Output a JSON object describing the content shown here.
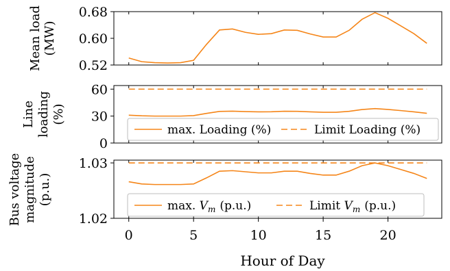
{
  "chart_data": [
    {
      "type": "line",
      "ylabel_lines": [
        "Mean load",
        "(MW)"
      ],
      "yticks": [
        0.52,
        0.6,
        0.68
      ],
      "ytick_labels": [
        "0.52",
        "0.60",
        "0.68"
      ],
      "ylim": [
        0.52,
        0.68
      ],
      "xlim": [
        -1.15,
        24.15
      ],
      "series": [
        {
          "role": "mean-load",
          "color": "#f58518",
          "x": [
            0,
            1,
            2,
            3,
            4,
            5,
            6,
            7,
            8,
            9,
            10,
            11,
            12,
            13,
            14,
            15,
            16,
            17,
            18,
            19,
            20,
            21,
            22,
            23
          ],
          "values": [
            0.541,
            0.53,
            0.527,
            0.526,
            0.527,
            0.534,
            0.582,
            0.625,
            0.628,
            0.618,
            0.612,
            0.614,
            0.625,
            0.624,
            0.613,
            0.604,
            0.604,
            0.624,
            0.657,
            0.677,
            0.66,
            0.637,
            0.614,
            0.585
          ]
        }
      ]
    },
    {
      "type": "line",
      "ylabel_lines": [
        "Line",
        "loading",
        "(%)"
      ],
      "yticks": [
        0,
        30,
        60
      ],
      "ytick_labels": [
        "0",
        "30",
        "60"
      ],
      "ylim": [
        0,
        64
      ],
      "xlim": [
        -1.15,
        24.15
      ],
      "legend_position": "lower-center",
      "series": [
        {
          "name": "max. Loading (%)",
          "style": "solid",
          "color": "#f58518",
          "x": [
            0,
            1,
            2,
            3,
            4,
            5,
            6,
            7,
            8,
            9,
            10,
            11,
            12,
            13,
            14,
            15,
            16,
            17,
            18,
            19,
            20,
            21,
            22,
            23
          ],
          "values": [
            31.0,
            30.3,
            30.0,
            30.0,
            30.0,
            30.5,
            33.0,
            35.2,
            35.5,
            35.0,
            34.7,
            34.8,
            35.4,
            35.3,
            34.7,
            34.2,
            34.2,
            35.3,
            37.3,
            38.3,
            37.4,
            36.1,
            34.7,
            33.1
          ]
        },
        {
          "name": "Limit Loading (%)",
          "style": "dashed",
          "color": "#f58518",
          "x": [
            0,
            23
          ],
          "values": [
            60,
            60
          ]
        }
      ]
    },
    {
      "type": "line",
      "ylabel_lines": [
        "Bus voltage",
        "magnitude",
        "(p.u.)"
      ],
      "yticks": [
        1.02,
        1.03
      ],
      "ytick_labels": [
        "1.02",
        "1.03"
      ],
      "ylim": [
        1.02,
        1.0305
      ],
      "xlim": [
        -1.15,
        24.15
      ],
      "xticks": [
        0,
        5,
        10,
        15,
        20
      ],
      "xtick_labels": [
        "0",
        "5",
        "10",
        "15",
        "20"
      ],
      "xlabel": "Hour of Day",
      "legend_position": "lower-center",
      "series": [
        {
          "name": "max. V_m (p.u.)",
          "style": "solid",
          "color": "#f58518",
          "x": [
            0,
            1,
            2,
            3,
            4,
            5,
            6,
            7,
            8,
            9,
            10,
            11,
            12,
            13,
            14,
            15,
            16,
            17,
            18,
            19,
            20,
            21,
            22,
            23
          ],
          "values": [
            1.0266,
            1.0262,
            1.0261,
            1.0261,
            1.0261,
            1.0262,
            1.0273,
            1.0285,
            1.0286,
            1.0284,
            1.0282,
            1.0282,
            1.0285,
            1.0285,
            1.0281,
            1.0278,
            1.0278,
            1.0285,
            1.0295,
            1.03,
            1.0295,
            1.0288,
            1.0281,
            1.0272
          ]
        },
        {
          "name": "Limit V_m (p.u.)",
          "style": "dashed",
          "color": "#f58518",
          "x": [
            0,
            23
          ],
          "values": [
            1.03,
            1.03
          ]
        }
      ]
    }
  ],
  "legend_labels": {
    "loading_max": "max. Loading (%)",
    "loading_limit": "Limit Loading (%)",
    "vm_max_prefix": "max.",
    "vm_limit_prefix": "Limit",
    "vm_symbol": "V",
    "vm_subscript": "m",
    "vm_unit": "(p.u.)"
  }
}
